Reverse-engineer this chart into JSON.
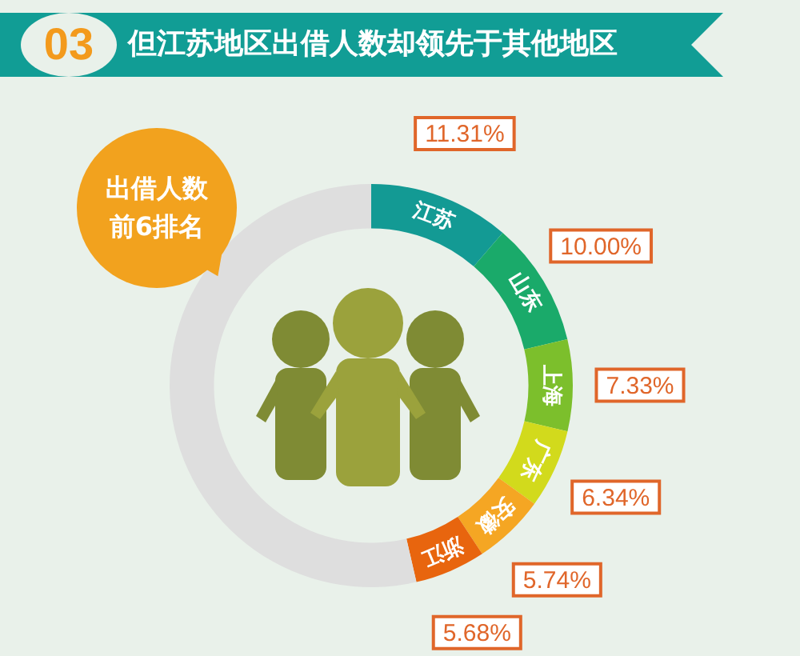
{
  "chart_data": {
    "type": "donut",
    "title": "但江苏地区出借人数却领先于其他地区",
    "annotations": [
      "03",
      "出借人数前6排名"
    ],
    "categories": [
      "江苏",
      "山东",
      "上海",
      "广东",
      "安徽",
      "浙江",
      null
    ],
    "values": [
      11.31,
      10.0,
      7.33,
      6.34,
      5.74,
      5.68,
      53.6
    ],
    "value_labels": [
      "11.31%",
      "10.00%",
      "7.33%",
      "6.34%",
      "5.74%",
      "5.68%",
      null
    ],
    "colors": [
      "#139a94",
      "#1aaa6a",
      "#7cbf2c",
      "#d2da1c",
      "#f5a623",
      "#e8650e",
      "#dedede"
    ]
  }
}
